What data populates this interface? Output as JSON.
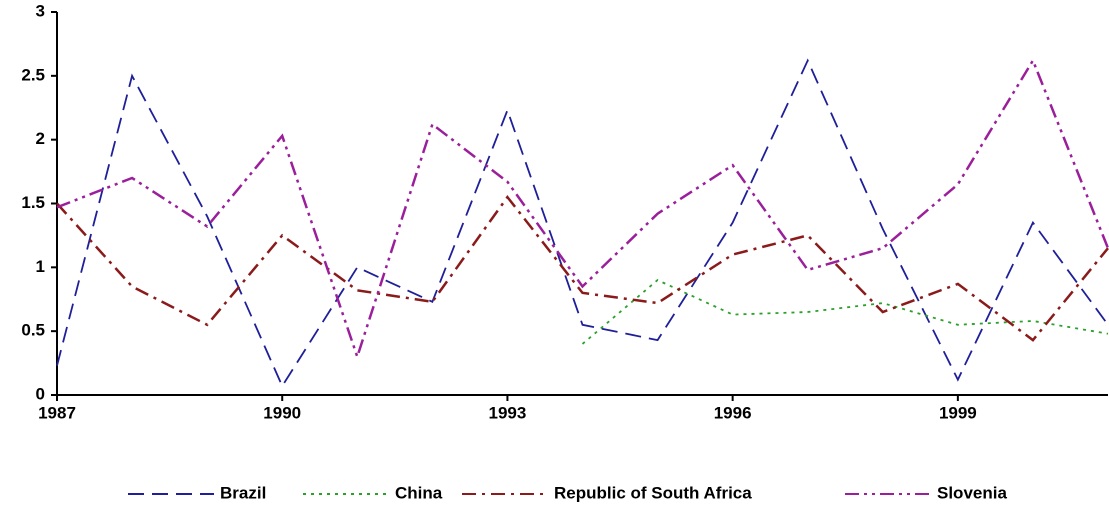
{
  "chart_data": {
    "type": "line",
    "x": [
      1987,
      1988,
      1989,
      1990,
      1991,
      1992,
      1993,
      1994,
      1995,
      1996,
      1997,
      1998,
      1999,
      2000,
      2001
    ],
    "series": [
      {
        "name": "Brazil",
        "color": "#1f1f9a",
        "dash": "dashed",
        "values": [
          0.23,
          2.5,
          1.4,
          0.07,
          1.0,
          0.73,
          2.23,
          0.55,
          0.43,
          1.35,
          2.62,
          1.3,
          0.12,
          1.35,
          0.55
        ]
      },
      {
        "name": "China",
        "color": "#2aa12a",
        "dash": "dotted",
        "values": [
          null,
          null,
          null,
          null,
          null,
          null,
          null,
          0.4,
          0.9,
          0.63,
          0.65,
          0.72,
          0.55,
          0.58,
          0.48
        ]
      },
      {
        "name": "Republic of South Africa",
        "color": "#8b1a1a",
        "dash": "dash-dot",
        "values": [
          1.5,
          0.85,
          0.55,
          1.25,
          0.82,
          0.73,
          1.55,
          0.8,
          0.72,
          1.1,
          1.25,
          0.65,
          0.87,
          0.43,
          1.15
        ]
      },
      {
        "name": "Slovenia",
        "color": "#9b1f9b",
        "dash": "dash-dot-dot",
        "values": [
          1.47,
          1.7,
          1.32,
          2.03,
          0.3,
          2.12,
          1.67,
          0.85,
          1.42,
          1.8,
          0.98,
          1.15,
          1.65,
          2.62,
          1.15
        ]
      }
    ],
    "xlim": [
      1987,
      2001
    ],
    "xticks": [
      1987,
      1990,
      1993,
      1996,
      1999
    ],
    "ylim": [
      0,
      3
    ],
    "yticks": [
      0,
      0.5,
      1,
      1.5,
      2,
      2.5,
      3
    ],
    "grid": false,
    "legend": "bottom"
  }
}
